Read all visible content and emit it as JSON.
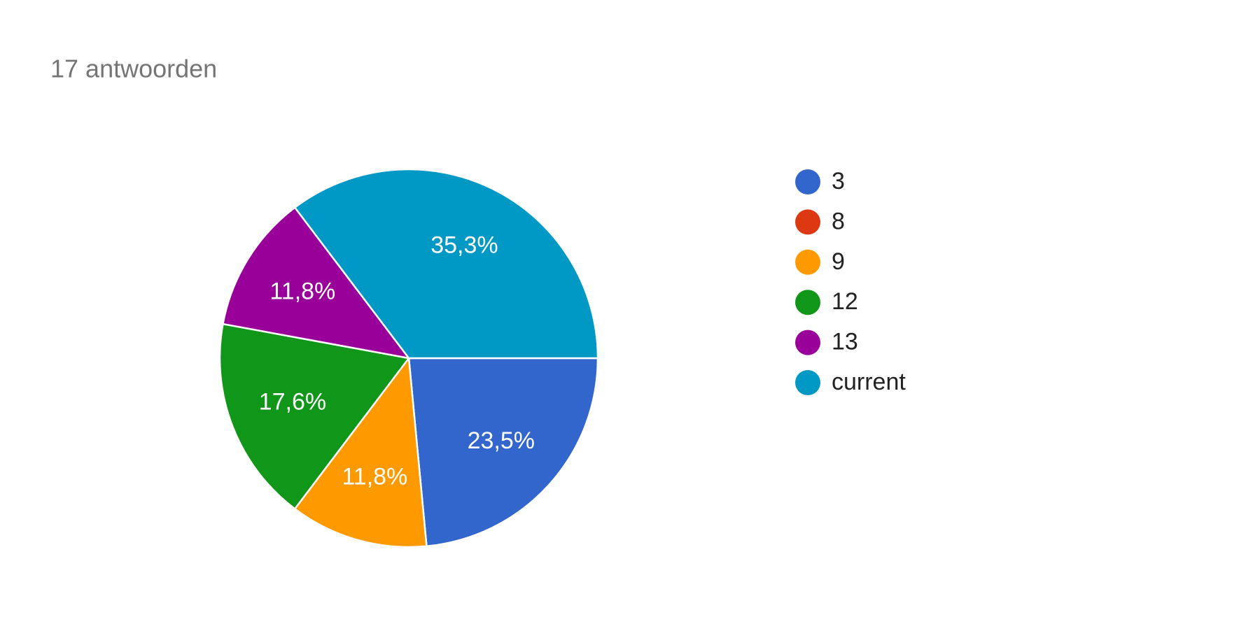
{
  "chart_data": {
    "type": "pie",
    "title": "17 antwoorden",
    "categories": [
      "3",
      "8",
      "9",
      "12",
      "13",
      "current"
    ],
    "values": [
      23.5,
      0,
      11.8,
      17.6,
      11.8,
      35.3
    ],
    "value_labels": [
      "23,5%",
      null,
      "11,8%",
      "17,6%",
      "11,8%",
      "35,3%"
    ],
    "colors": [
      "#3366cc",
      "#dc3912",
      "#ff9900",
      "#109618",
      "#990099",
      "#0099c6"
    ],
    "legend": "right"
  }
}
